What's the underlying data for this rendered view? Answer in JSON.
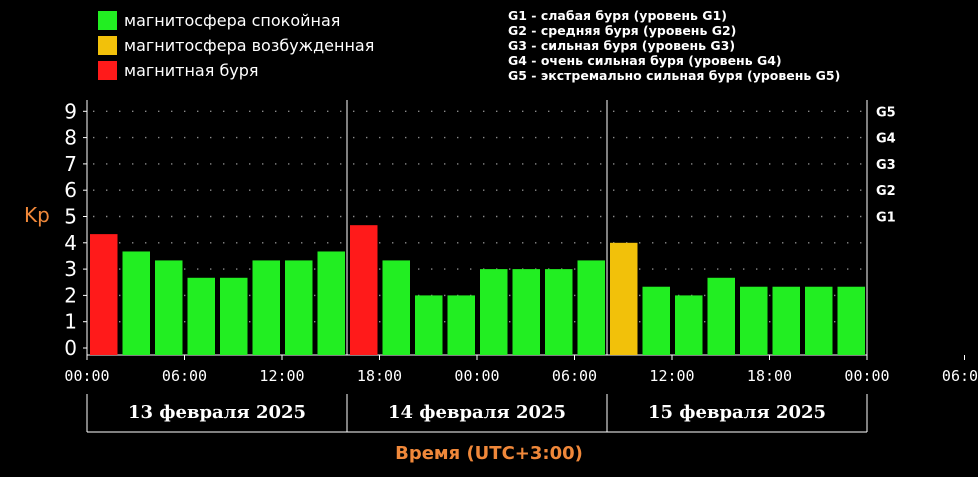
{
  "legend": {
    "items": [
      {
        "label": "магнитосфера спокойная",
        "color": "#22ee22"
      },
      {
        "label": "магнитосфера возбужденная",
        "color": "#f2c10a"
      },
      {
        "label": "магнитная буря",
        "color": "#ff1a1a"
      }
    ],
    "storm_levels": [
      "G1 - слабая буря (уровень G1)",
      "G2 - средняя буря (уровень G2)",
      "G3 - сильная буря (уровень G3)",
      "G4 - очень сильная буря (уровень G4)",
      "G5 - экстремально сильная буря (уровень G5)"
    ]
  },
  "chart_data": {
    "type": "bar",
    "ylabel": "Kp",
    "xlabel": "Время (UTC+3:00)",
    "ylim": [
      0,
      9
    ],
    "y_ticks": [
      "0",
      "1",
      "2",
      "3",
      "4",
      "5",
      "6",
      "7",
      "8",
      "9"
    ],
    "right_ticks": [
      {
        "label": "G1",
        "value": 5
      },
      {
        "label": "G2",
        "value": 6
      },
      {
        "label": "G3",
        "value": 7
      },
      {
        "label": "G4",
        "value": 8
      },
      {
        "label": "G5",
        "value": 9
      }
    ],
    "x_tick_labels": [
      "00:00",
      "06:00",
      "12:00",
      "18:00",
      "00:00",
      "06:00",
      "12:00",
      "18:00",
      "00:00",
      "06:00",
      "12:00",
      "18:00",
      "00:00"
    ],
    "days": [
      "13 февраля 2025",
      "14 февраля 2025",
      "15 февраля 2025"
    ],
    "grid": true,
    "colors": {
      "quiet": "#22ee22",
      "active": "#f2c10a",
      "storm": "#ff1a1a"
    },
    "bars": [
      {
        "value": 4.33,
        "status": "storm"
      },
      {
        "value": 3.67,
        "status": "quiet"
      },
      {
        "value": 3.33,
        "status": "quiet"
      },
      {
        "value": 2.67,
        "status": "quiet"
      },
      {
        "value": 2.67,
        "status": "quiet"
      },
      {
        "value": 3.33,
        "status": "quiet"
      },
      {
        "value": 3.33,
        "status": "quiet"
      },
      {
        "value": 3.67,
        "status": "quiet"
      },
      {
        "value": 4.67,
        "status": "storm"
      },
      {
        "value": 3.33,
        "status": "quiet"
      },
      {
        "value": 2.0,
        "status": "quiet"
      },
      {
        "value": 2.0,
        "status": "quiet"
      },
      {
        "value": 3.0,
        "status": "quiet"
      },
      {
        "value": 3.0,
        "status": "quiet"
      },
      {
        "value": 3.0,
        "status": "quiet"
      },
      {
        "value": 3.33,
        "status": "quiet"
      },
      {
        "value": 4.0,
        "status": "active"
      },
      {
        "value": 2.33,
        "status": "quiet"
      },
      {
        "value": 2.0,
        "status": "quiet"
      },
      {
        "value": 2.67,
        "status": "quiet"
      },
      {
        "value": 2.33,
        "status": "quiet"
      },
      {
        "value": 2.33,
        "status": "quiet"
      },
      {
        "value": 2.33,
        "status": "quiet"
      },
      {
        "value": 2.33,
        "status": "quiet"
      }
    ]
  }
}
